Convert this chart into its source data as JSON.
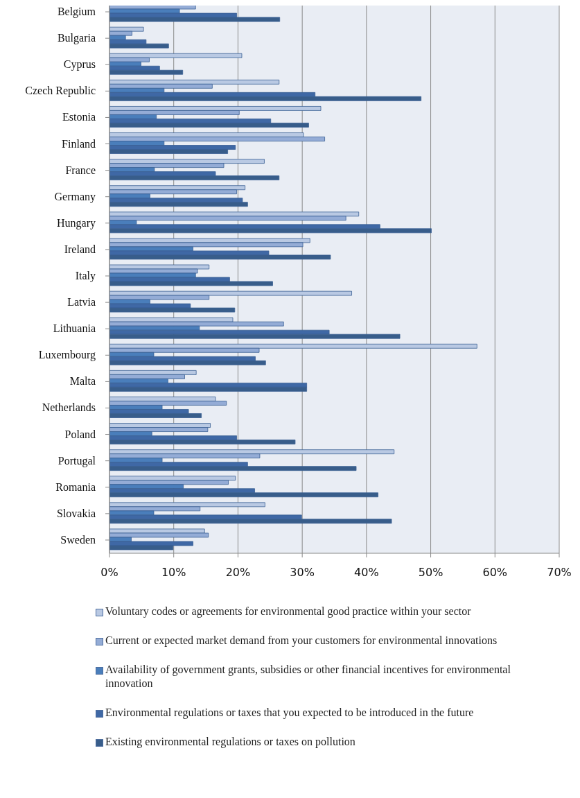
{
  "chart_data": {
    "type": "bar",
    "orientation": "horizontal",
    "categories": [
      "Belgium",
      "Bulgaria",
      "Cyprus",
      "Czech Republic",
      "Estonia",
      "Finland",
      "France",
      "Germany",
      "Hungary",
      "Ireland",
      "Italy",
      "Latvia",
      "Lithuania",
      "Luxembourg",
      "Malta",
      "Netherlands",
      "Poland",
      "Portugal",
      "Romania",
      "Slovakia",
      "Sweden"
    ],
    "series": [
      {
        "name": "Voluntary codes or agreements for environmental good practice within your sector",
        "color": "#b9c9e3",
        "values": [
          null,
          5.3,
          20.6,
          26.4,
          32.9,
          30.2,
          24.1,
          21.1,
          38.8,
          31.2,
          15.5,
          37.7,
          19.2,
          57.2,
          13.5,
          16.5,
          15.7,
          44.3,
          19.6,
          24.2,
          14.8
        ]
      },
      {
        "name": "Current or expected market demand from your customers for environmental innovations",
        "color": "#94acd6",
        "values": [
          13.4,
          3.5,
          6.2,
          16.0,
          20.2,
          33.5,
          17.8,
          19.8,
          36.8,
          30.1,
          13.7,
          15.5,
          27.1,
          23.3,
          11.7,
          18.2,
          15.3,
          23.4,
          18.5,
          14.1,
          15.4
        ]
      },
      {
        "name": "Availability of government grants, subsidies or other financial incentives for environmental innovation",
        "color": "#4a7ebb",
        "values": [
          10.9,
          2.5,
          4.9,
          8.5,
          7.3,
          8.5,
          7.0,
          6.3,
          4.2,
          13.0,
          13.4,
          6.3,
          14.0,
          6.9,
          9.1,
          8.2,
          6.6,
          8.2,
          11.5,
          6.9,
          3.4
        ]
      },
      {
        "name": "Environmental regulations or taxes that you expected to be introduced in the future",
        "color": "#3f68a5",
        "values": [
          19.8,
          5.7,
          7.8,
          32.0,
          25.1,
          19.6,
          16.5,
          20.7,
          42.1,
          24.8,
          18.7,
          12.6,
          34.2,
          22.7,
          30.7,
          12.3,
          19.8,
          21.5,
          22.6,
          29.9,
          13.0
        ]
      },
      {
        "name": "Existing environmental regulations or taxes on pollution",
        "color": "#385d8a",
        "values": [
          26.5,
          9.2,
          11.4,
          48.5,
          31.0,
          18.4,
          26.4,
          21.5,
          50.1,
          34.4,
          25.4,
          19.5,
          45.2,
          24.3,
          30.7,
          14.3,
          28.9,
          38.4,
          41.8,
          43.9,
          9.9
        ]
      }
    ],
    "xlim": [
      0,
      70
    ],
    "xticks": [
      {
        "value": 0,
        "label": "0%"
      },
      {
        "value": 10,
        "label": "10%"
      },
      {
        "value": 20,
        "label": "20%"
      },
      {
        "value": 30,
        "label": "30%"
      },
      {
        "value": 40,
        "label": "40%"
      },
      {
        "value": 50,
        "label": "50%"
      },
      {
        "value": 60,
        "label": "60%"
      },
      {
        "value": 70,
        "label": "70%"
      }
    ],
    "grid": "x",
    "legend": "bottom"
  }
}
